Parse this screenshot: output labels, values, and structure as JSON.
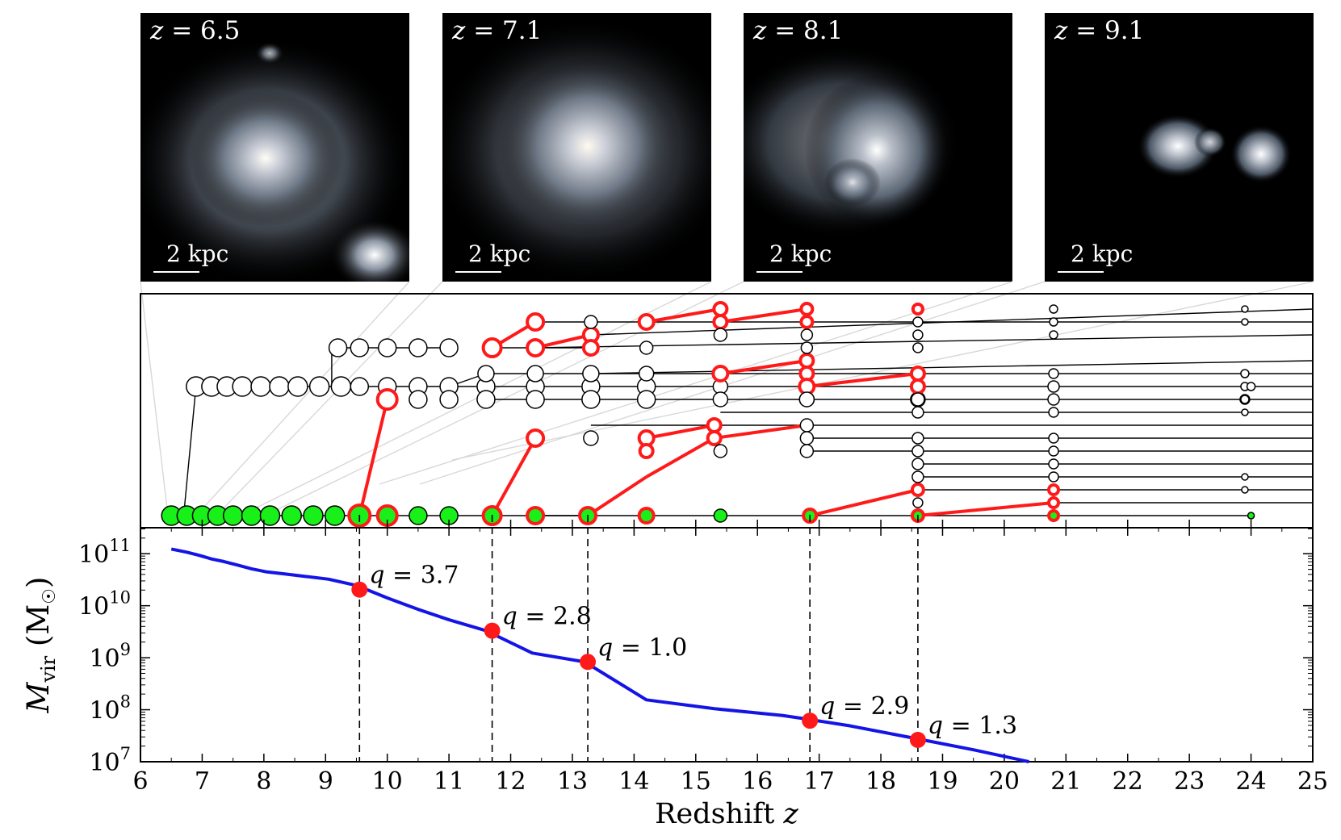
{
  "galaxy_panels": [
    {
      "z_prefix": "z",
      "z_value": "= 6.5",
      "scale_label": "2 kpc"
    },
    {
      "z_prefix": "z",
      "z_value": "= 7.1",
      "scale_label": "2 kpc"
    },
    {
      "z_prefix": "z",
      "z_value": "= 8.1",
      "scale_label": "2 kpc"
    },
    {
      "z_prefix": "z",
      "z_value": "= 9.1",
      "scale_label": "2 kpc"
    }
  ],
  "chart_data": {
    "type": "line",
    "title": "",
    "xlabel_text": "Redshift ",
    "xlabel_var": "z",
    "ylabel_var": "M",
    "ylabel_sub": "vir",
    "ylabel_unit": "(M",
    "ylabel_unit_sym": "☉",
    "ylabel_close": ")",
    "xlim": [
      6,
      25
    ],
    "ylim_log10": [
      7,
      11.5
    ],
    "yscale": "log",
    "x_ticks": [
      "6",
      "7",
      "8",
      "9",
      "10",
      "11",
      "12",
      "13",
      "14",
      "15",
      "16",
      "17",
      "18",
      "19",
      "20",
      "21",
      "22",
      "23",
      "24",
      "25"
    ],
    "y_ticks": [
      {
        "base": "10",
        "exp": "7",
        "log": 7
      },
      {
        "base": "10",
        "exp": "8",
        "log": 8
      },
      {
        "base": "10",
        "exp": "9",
        "log": 9
      },
      {
        "base": "10",
        "exp": "10",
        "log": 10
      },
      {
        "base": "10",
        "exp": "11",
        "log": 11
      }
    ],
    "series": [
      {
        "name": "M_vir",
        "color": "#1414e6",
        "x": [
          6.5,
          6.75,
          6.95,
          7.15,
          7.35,
          7.55,
          7.8,
          8.05,
          8.35,
          8.7,
          9.05,
          9.5,
          10.0,
          10.5,
          11.0,
          11.6,
          12.35,
          13.2,
          14.2,
          15.3,
          16.4,
          16.8,
          17.5,
          18.55,
          19.5,
          20.4
        ],
        "log_mass": [
          11.09,
          11.03,
          10.97,
          10.9,
          10.85,
          10.79,
          10.71,
          10.65,
          10.61,
          10.56,
          10.51,
          10.39,
          10.15,
          9.93,
          9.73,
          9.52,
          9.09,
          8.92,
          8.19,
          8.02,
          7.89,
          7.82,
          7.69,
          7.45,
          7.23,
          7.0
        ]
      }
    ],
    "mergers": [
      {
        "z": 9.55,
        "log_mass": 10.31,
        "label": "q = 3.7"
      },
      {
        "z": 11.7,
        "log_mass": 9.52,
        "label": "q = 2.8"
      },
      {
        "z": 13.25,
        "log_mass": 8.92,
        "label": "q = 1.0"
      },
      {
        "z": 16.85,
        "log_mass": 7.79,
        "label": "q = 2.9"
      },
      {
        "z": 18.6,
        "log_mass": 7.42,
        "label": "q = 1.3"
      }
    ],
    "merger_color": "#ff1a1a",
    "merger_tree": {
      "levels": [
        {
          "name": "main",
          "y": 0
        },
        {
          "name": "b1",
          "y": 1
        },
        {
          "name": "b2",
          "y": 2
        },
        {
          "name": "b3",
          "y": 3
        },
        {
          "name": "b4",
          "y": 4
        },
        {
          "name": "b5",
          "y": 5
        },
        {
          "name": "b6",
          "y": 6
        },
        {
          "name": "b7",
          "y": 7
        },
        {
          "name": "b8",
          "y": 8
        },
        {
          "name": "b9",
          "y": 9
        },
        {
          "name": "b10",
          "y": 10
        },
        {
          "name": "b11",
          "y": 11
        },
        {
          "name": "b12",
          "y": 12
        },
        {
          "name": "b13",
          "y": 13
        },
        {
          "name": "b14",
          "y": 14
        },
        {
          "name": "b15",
          "y": 15
        },
        {
          "name": "b16",
          "y": 16
        }
      ],
      "colors": {
        "main": "#19f019",
        "merge": "#ff1a1a",
        "normal": "#ffffff"
      }
    }
  }
}
